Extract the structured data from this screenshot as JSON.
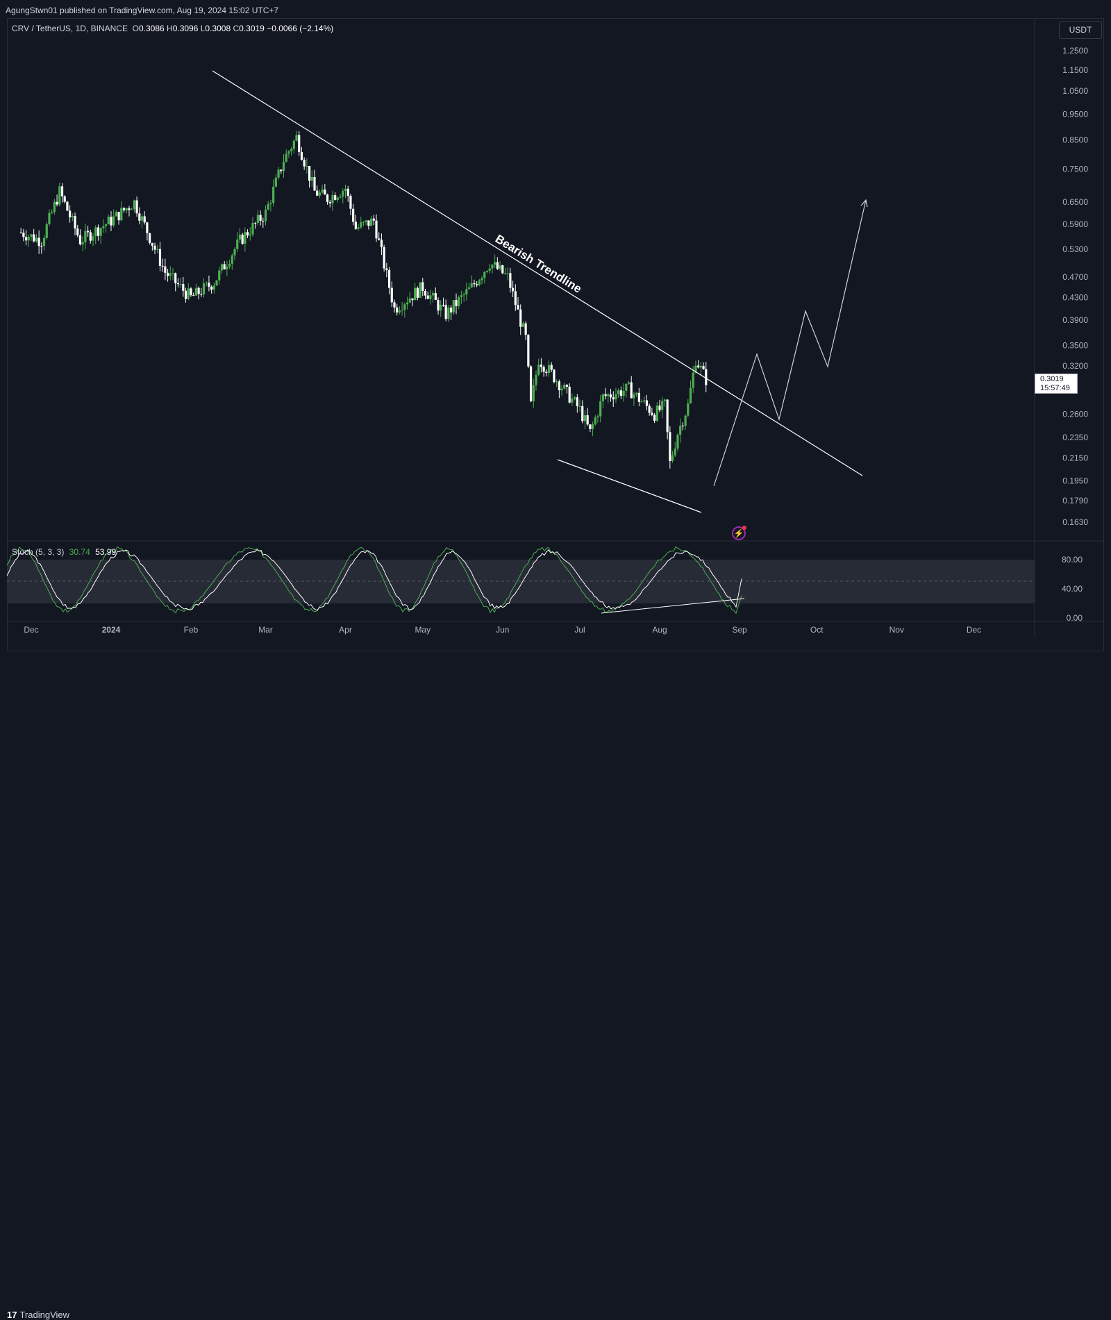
{
  "header": {
    "publisher": "AgungStwn01 published on TradingView.com, Aug 19, 2024 15:02 UTC+7"
  },
  "legend": {
    "symbol": "CRV / TetherUS, 1D, BINANCE",
    "o_label": "O",
    "o": "0.3086",
    "h_label": "H",
    "h": "0.3096",
    "l_label": "L",
    "l": "0.3008",
    "c_label": "C",
    "c": "0.3019",
    "change": "−0.0066 (−2.14%)"
  },
  "currency_button": "USDT",
  "last_price": {
    "price": "0.3019",
    "countdown": "15:57:49"
  },
  "stoch": {
    "label": "Stoch (5, 3, 3)",
    "k": "30.74",
    "d": "53.99"
  },
  "annotation": {
    "trendline_label": "Bearish Trendline"
  },
  "footer": {
    "brand": "TradingView",
    "brand_mark": "17"
  },
  "colors": {
    "background": "#131722",
    "up": "#4caf50",
    "down": "#ffffff",
    "stoch_k": "#4caf50",
    "stoch_d": "#ffffff",
    "band": "#2a2e39"
  },
  "chart_data": [
    {
      "type": "line",
      "title": "CRV / TetherUS, 1D, BINANCE",
      "scale": "log",
      "y_ticks": [
        "1.2500",
        "1.1500",
        "1.0500",
        "0.9500",
        "0.8500",
        "0.7500",
        "0.6500",
        "0.5900",
        "0.5300",
        "0.4700",
        "0.4300",
        "0.3900",
        "0.3500",
        "0.3200",
        "0.2600",
        "0.2350",
        "0.2150",
        "0.1950",
        "0.1790",
        "0.1630"
      ],
      "x_ticks": [
        "Dec",
        "2024",
        "Feb",
        "Mar",
        "Apr",
        "May",
        "Jun",
        "Jul",
        "Aug",
        "Sep",
        "Oct",
        "Nov",
        "Dec"
      ],
      "x": [
        "2023-11-27",
        "2023-12-05",
        "2023-12-12",
        "2023-12-20",
        "2024-01-01",
        "2024-01-10",
        "2024-01-22",
        "2024-02-01",
        "2024-02-10",
        "2024-02-20",
        "2024-03-01",
        "2024-03-08",
        "2024-03-13",
        "2024-03-20",
        "2024-03-25",
        "2024-04-01",
        "2024-04-05",
        "2024-04-12",
        "2024-04-20",
        "2024-05-01",
        "2024-05-10",
        "2024-05-20",
        "2024-05-27",
        "2024-06-03",
        "2024-06-10",
        "2024-06-12",
        "2024-06-15",
        "2024-06-20",
        "2024-07-01",
        "2024-07-05",
        "2024-07-10",
        "2024-07-20",
        "2024-07-30",
        "2024-08-03",
        "2024-08-05",
        "2024-08-08",
        "2024-08-12",
        "2024-08-15",
        "2024-08-19"
      ],
      "y": [
        0.57,
        0.55,
        0.68,
        0.55,
        0.6,
        0.65,
        0.48,
        0.43,
        0.46,
        0.55,
        0.62,
        0.78,
        0.86,
        0.68,
        0.66,
        0.69,
        0.58,
        0.6,
        0.41,
        0.45,
        0.4,
        0.45,
        0.5,
        0.47,
        0.36,
        0.27,
        0.33,
        0.31,
        0.265,
        0.24,
        0.28,
        0.29,
        0.26,
        0.27,
        0.21,
        0.24,
        0.27,
        0.33,
        0.3019
      ],
      "annotations": [
        "Bearish Trendline"
      ],
      "current_price": 0.3019
    },
    {
      "type": "line",
      "title": "Stoch (5, 3, 3)",
      "y_ticks": [
        "80.00",
        "40.00",
        "0.00"
      ],
      "ylim": [
        0,
        100
      ],
      "band": [
        20,
        80
      ],
      "series": [
        {
          "name": "%K",
          "last": 30.74
        },
        {
          "name": "%D",
          "last": 53.99
        }
      ]
    }
  ]
}
